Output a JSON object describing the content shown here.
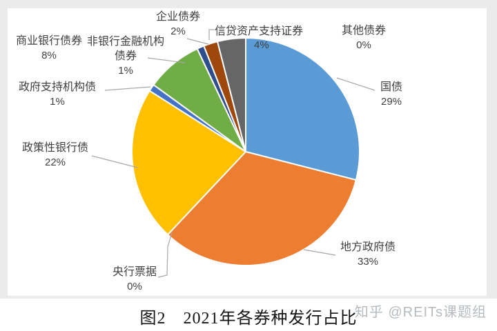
{
  "page": {
    "caption": "图2　2021年各券种发行占比",
    "watermark": "知乎 @REITs课题组"
  },
  "chart_data": {
    "type": "pie",
    "title": "图2　2021年各券种发行占比",
    "legend": "none",
    "start_angle_deg": 0,
    "direction": "clockwise",
    "label_style": "outside callout labels with gray leader lines",
    "slices": [
      {
        "label": "国债",
        "value_pct": 29,
        "pct_label": "29%",
        "color": "#5B9BD5"
      },
      {
        "label": "地方政府债",
        "value_pct": 33,
        "pct_label": "33%",
        "color": "#ED7D31"
      },
      {
        "label": "央行票据",
        "value_pct": 0,
        "pct_label": "0%",
        "color": "#A5A5A5"
      },
      {
        "label": "政策性银行债",
        "value_pct": 22,
        "pct_label": "22%",
        "color": "#FFC000"
      },
      {
        "label": "政府支持机构债",
        "value_pct": 1,
        "pct_label": "1%",
        "color": "#4472C4"
      },
      {
        "label": "商业银行债券",
        "value_pct": 8,
        "pct_label": "8%",
        "color": "#70AD47"
      },
      {
        "label": "非银行金融机构债券",
        "value_pct": 1,
        "pct_label": "1%",
        "color": "#2D4D8C"
      },
      {
        "label": "企业债券",
        "value_pct": 2,
        "pct_label": "2%",
        "color": "#9E480E"
      },
      {
        "label": "信贷资产支持证券",
        "value_pct": 4,
        "pct_label": "4%",
        "color": "#666666"
      },
      {
        "label": "其他债券",
        "value_pct": 0,
        "pct_label": "0%",
        "color": "#997300"
      }
    ],
    "leader_line_color": "#a6a6a6",
    "label_text_color": "#3f3f3f"
  }
}
